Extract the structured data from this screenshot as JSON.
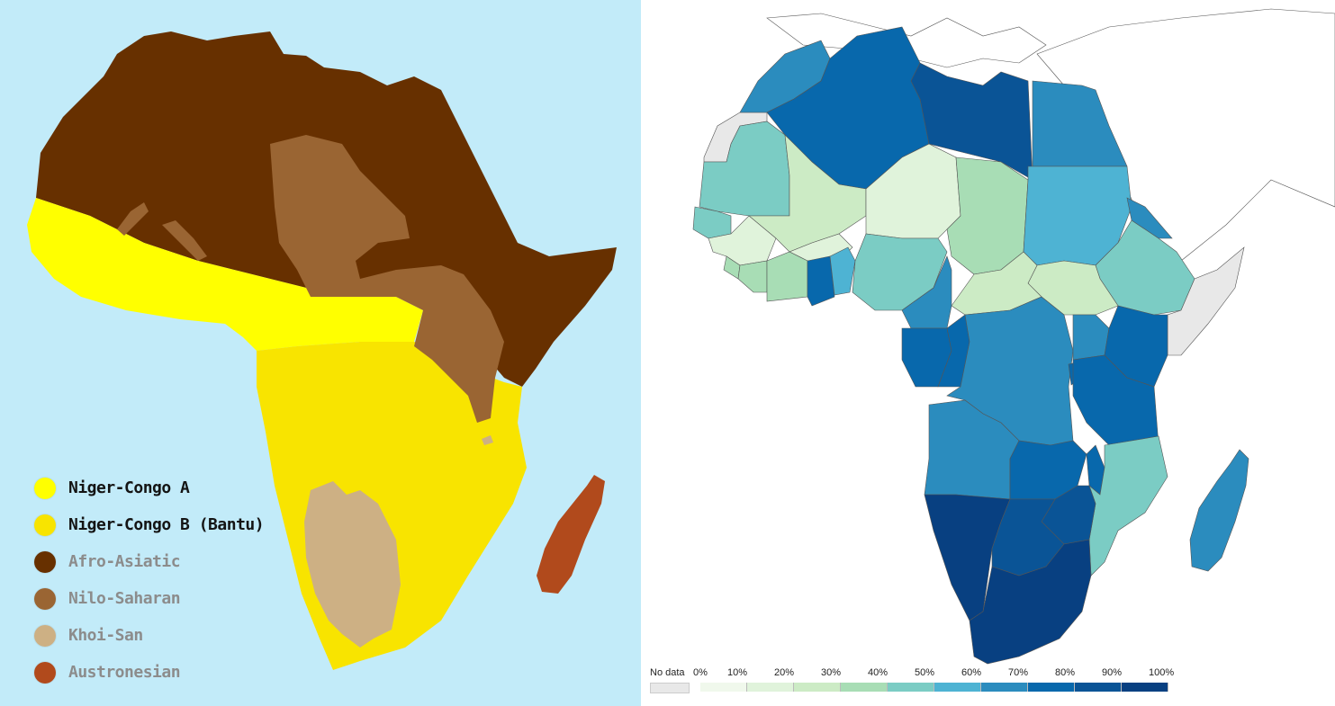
{
  "left_map": {
    "legend": [
      {
        "label": "Niger-Congo A",
        "color": "#ffff00",
        "text_style": "dark"
      },
      {
        "label": "Niger-Congo B (Bantu)",
        "color": "#f8e400",
        "text_style": "dark"
      },
      {
        "label": "Afro-Asiatic",
        "color": "#673000",
        "text_style": "grey"
      },
      {
        "label": "Nilo-Saharan",
        "color": "#9a6533",
        "text_style": "grey"
      },
      {
        "label": "Khoi-San",
        "color": "#cdb084",
        "text_style": "grey"
      },
      {
        "label": "Austronesian",
        "color": "#b14a1c",
        "text_style": "grey"
      }
    ],
    "ocean_color": "#c2ebf9"
  },
  "right_map": {
    "legend": {
      "no_data_label": "No data",
      "no_data_color": "#e8e8e8",
      "ticks": [
        "0%",
        "10%",
        "20%",
        "30%",
        "40%",
        "50%",
        "60%",
        "70%",
        "80%",
        "90%",
        "100%"
      ],
      "bins": [
        "#f0f8ec",
        "#e0f3db",
        "#ccebc5",
        "#a8ddb5",
        "#7bccc4",
        "#4eb3d3",
        "#2b8cbe",
        "#0868ac",
        "#0a5496",
        "#084081"
      ]
    }
  }
}
